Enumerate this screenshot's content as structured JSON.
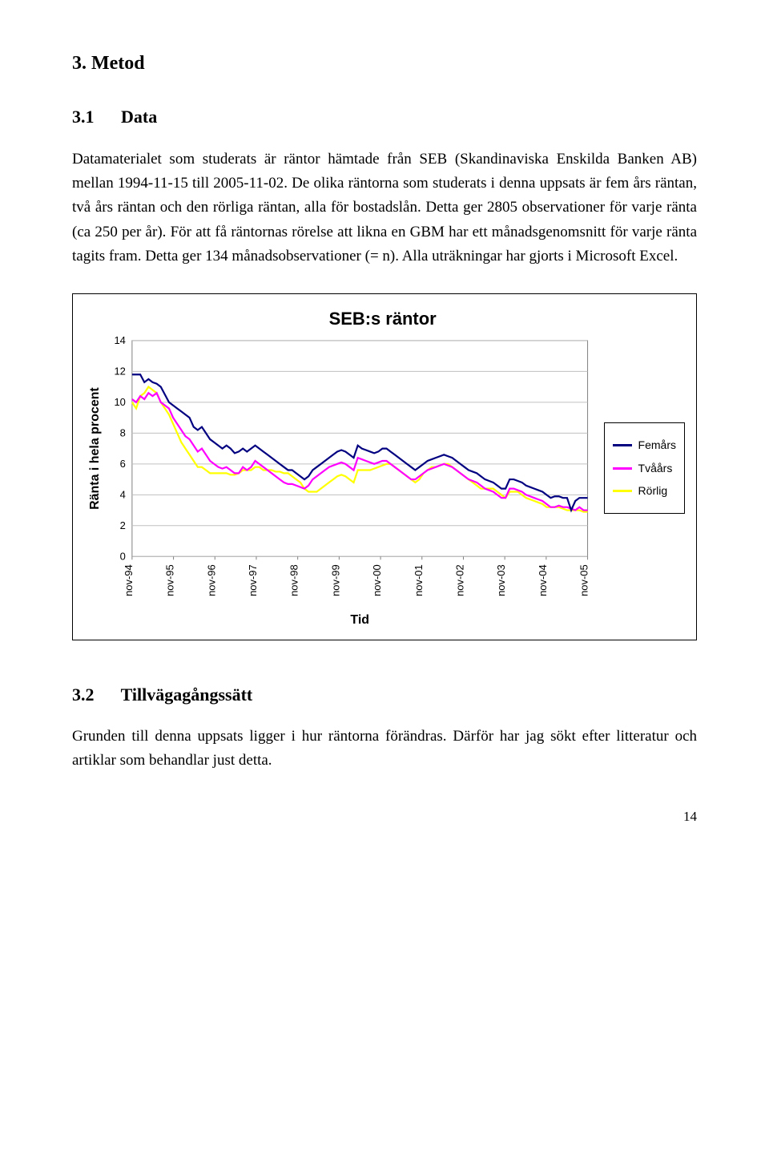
{
  "section": {
    "heading": "3. Metod"
  },
  "sub1": {
    "num": "3.1",
    "title": "Data",
    "para": "Datamaterialet som studerats är räntor hämtade från SEB (Skandinaviska Enskilda Banken AB) mellan 1994-11-15 till 2005-11-02. De olika räntorna som studerats i denna uppsats är fem års räntan, två års räntan och den rörliga räntan, alla för bostadslån. Detta ger 2805 observationer för varje ränta (ca 250 per år). För att få räntornas rörelse att likna en GBM har ett månadsgenomsnitt för varje ränta tagits fram. Detta ger 134 månadsobservationer (= n). Alla uträkningar har gjorts i Microsoft Excel."
  },
  "chart": {
    "type": "line",
    "title": "SEB:s räntor",
    "title_fontsize": 22,
    "title_fontfamily": "Arial",
    "title_bold": true,
    "xlabel": "Tid",
    "ylabel": "Ränta i hela procent",
    "label_fontsize": 16,
    "label_bold": true,
    "ylim": [
      0,
      14
    ],
    "ytick_step": 2,
    "yticks": [
      0,
      2,
      4,
      6,
      8,
      10,
      12,
      14
    ],
    "xticks": [
      "nov-94",
      "nov-95",
      "nov-96",
      "nov-97",
      "nov-98",
      "nov-99",
      "nov-00",
      "nov-01",
      "nov-02",
      "nov-03",
      "nov-04",
      "nov-05"
    ],
    "grid_color": "#c0c0c0",
    "background_color": "#ffffff",
    "plot_bg": "#ffffff",
    "axis_color": "#808080",
    "tick_fontsize": 13,
    "tick_fontfamily": "Arial",
    "line_width": 2.2,
    "legend": {
      "items": [
        {
          "label": "Femårs",
          "color": "#000080"
        },
        {
          "label": "Tvåårs",
          "color": "#ff00ff"
        },
        {
          "label": "Rörlig",
          "color": "#ffff00"
        }
      ]
    },
    "series": {
      "femars": {
        "color": "#000080",
        "y": [
          11.8,
          11.8,
          11.8,
          11.3,
          11.5,
          11.3,
          11.2,
          11.0,
          10.5,
          10.0,
          9.8,
          9.6,
          9.4,
          9.2,
          9.0,
          8.4,
          8.2,
          8.4,
          8.0,
          7.6,
          7.4,
          7.2,
          7.0,
          7.2,
          7.0,
          6.7,
          6.8,
          7.0,
          6.8,
          7.0,
          7.2,
          7.0,
          6.8,
          6.6,
          6.4,
          6.2,
          6.0,
          5.8,
          5.6,
          5.6,
          5.4,
          5.2,
          5.0,
          5.2,
          5.6,
          5.8,
          6.0,
          6.2,
          6.4,
          6.6,
          6.8,
          6.9,
          6.8,
          6.6,
          6.4,
          7.2,
          7.0,
          6.9,
          6.8,
          6.7,
          6.8,
          7.0,
          7.0,
          6.8,
          6.6,
          6.4,
          6.2,
          6.0,
          5.8,
          5.6,
          5.8,
          6.0,
          6.2,
          6.3,
          6.4,
          6.5,
          6.6,
          6.5,
          6.4,
          6.2,
          6.0,
          5.8,
          5.6,
          5.5,
          5.4,
          5.2,
          5.0,
          4.9,
          4.8,
          4.6,
          4.4,
          4.4,
          5.0,
          5.0,
          4.9,
          4.8,
          4.6,
          4.5,
          4.4,
          4.3,
          4.2,
          4.0,
          3.8,
          3.9,
          3.9,
          3.8,
          3.8,
          3.0,
          3.6,
          3.8,
          3.8,
          3.8
        ]
      },
      "tvaars": {
        "color": "#ff00ff",
        "y": [
          10.2,
          10.0,
          10.4,
          10.2,
          10.6,
          10.4,
          10.6,
          10.0,
          9.8,
          9.6,
          9.0,
          8.6,
          8.2,
          7.8,
          7.6,
          7.2,
          6.8,
          7.0,
          6.6,
          6.2,
          6.0,
          5.8,
          5.7,
          5.8,
          5.6,
          5.4,
          5.4,
          5.8,
          5.6,
          5.8,
          6.2,
          6.0,
          5.8,
          5.6,
          5.4,
          5.2,
          5.0,
          4.8,
          4.7,
          4.7,
          4.6,
          4.5,
          4.4,
          4.6,
          5.0,
          5.2,
          5.4,
          5.6,
          5.8,
          5.9,
          6.0,
          6.1,
          6.0,
          5.8,
          5.6,
          6.4,
          6.3,
          6.2,
          6.1,
          6.0,
          6.1,
          6.2,
          6.2,
          6.0,
          5.8,
          5.6,
          5.4,
          5.2,
          5.0,
          5.0,
          5.2,
          5.4,
          5.6,
          5.7,
          5.8,
          5.9,
          6.0,
          5.9,
          5.8,
          5.6,
          5.4,
          5.2,
          5.0,
          4.9,
          4.8,
          4.6,
          4.4,
          4.3,
          4.2,
          4.0,
          3.8,
          3.8,
          4.4,
          4.4,
          4.3,
          4.2,
          4.0,
          3.9,
          3.8,
          3.7,
          3.6,
          3.4,
          3.2,
          3.2,
          3.3,
          3.2,
          3.2,
          3.1,
          3.0,
          3.2,
          3.0,
          3.0
        ]
      },
      "rorlig": {
        "color": "#ffff00",
        "y": [
          10.0,
          9.6,
          10.4,
          10.6,
          11.0,
          10.8,
          10.6,
          10.0,
          9.6,
          9.2,
          8.6,
          8.0,
          7.4,
          7.0,
          6.6,
          6.2,
          5.8,
          5.8,
          5.6,
          5.4,
          5.4,
          5.4,
          5.4,
          5.4,
          5.3,
          5.3,
          5.4,
          5.6,
          5.6,
          5.6,
          5.8,
          5.8,
          5.6,
          5.6,
          5.6,
          5.5,
          5.5,
          5.4,
          5.4,
          5.2,
          5.0,
          4.8,
          4.4,
          4.2,
          4.2,
          4.2,
          4.4,
          4.6,
          4.8,
          5.0,
          5.2,
          5.3,
          5.2,
          5.0,
          4.8,
          5.6,
          5.6,
          5.6,
          5.6,
          5.7,
          5.8,
          5.9,
          6.0,
          6.0,
          5.8,
          5.6,
          5.4,
          5.2,
          5.0,
          4.8,
          5.0,
          5.4,
          5.6,
          5.8,
          5.8,
          5.9,
          6.0,
          6.0,
          5.8,
          5.6,
          5.4,
          5.2,
          5.0,
          4.8,
          4.6,
          4.4,
          4.4,
          4.4,
          4.4,
          4.2,
          4.0,
          3.8,
          4.2,
          4.2,
          4.2,
          4.0,
          3.8,
          3.7,
          3.6,
          3.5,
          3.4,
          3.2,
          3.2,
          3.2,
          3.2,
          3.1,
          3.0,
          3.0,
          3.0,
          3.0,
          2.9,
          2.9
        ]
      }
    }
  },
  "sub2": {
    "num": "3.2",
    "title": "Tillvägagångssätt",
    "para": "Grunden till denna uppsats ligger i hur räntorna förändras. Därför har jag sökt efter litteratur och artiklar som behandlar just detta."
  },
  "pagenum": "14"
}
